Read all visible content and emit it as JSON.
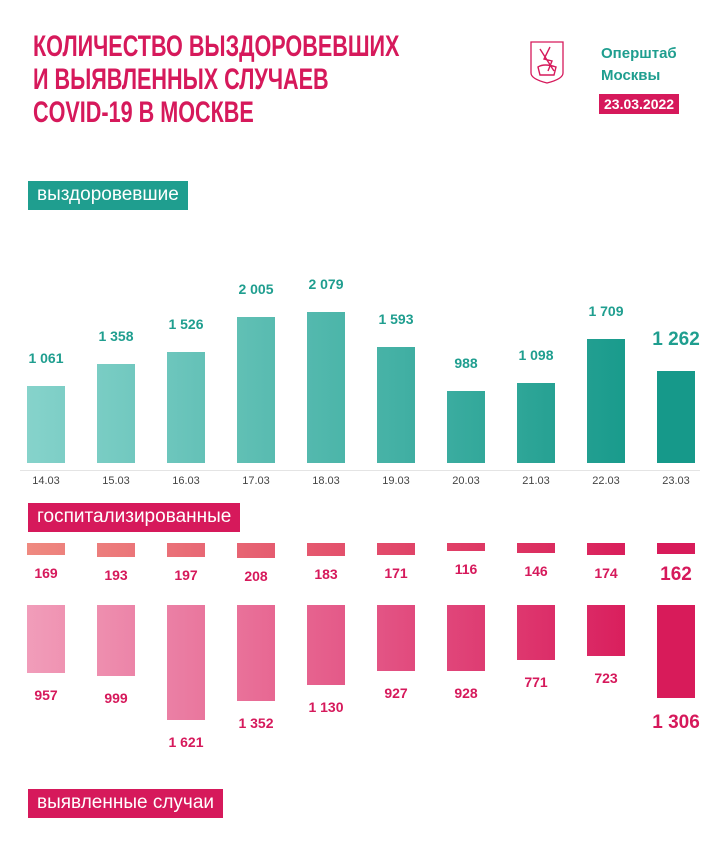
{
  "header": {
    "title_lines": [
      "КОЛИЧЕСТВО ВЫЗДОРОВЕВШИХ",
      "И ВЫЯВЛЕННЫХ СЛУЧАЕВ",
      "COVID-19 В МОСКВЕ"
    ],
    "org_lines": [
      "Оперштаб",
      "Москвы"
    ],
    "date": "23.03.2022",
    "logo": "moscow-coat-of-arms"
  },
  "colors": {
    "pink": "#d6195b",
    "teal": "#1f9e8f"
  },
  "sections": {
    "recovered": "выздоровевшие",
    "hospitalized": "госпитализированные",
    "cases": "выявленные случаи"
  },
  "chart_data": {
    "type": "bar",
    "categories": [
      "14.03",
      "15.03",
      "16.03",
      "17.03",
      "18.03",
      "19.03",
      "20.03",
      "21.03",
      "22.03",
      "23.03"
    ],
    "series": [
      {
        "name": "выздоровевшие",
        "values": [
          1061,
          1358,
          1526,
          2005,
          2079,
          1593,
          988,
          1098,
          1709,
          1262
        ],
        "labels": [
          "1 061",
          "1 358",
          "1 526",
          "2 005",
          "2 079",
          "1 593",
          "988",
          "1 098",
          "1 709",
          "1 262"
        ],
        "direction": "up",
        "color_start": "#86d3cb",
        "color_end": "#16998a"
      },
      {
        "name": "госпитализированные",
        "values": [
          169,
          193,
          197,
          208,
          183,
          171,
          116,
          146,
          174,
          162
        ],
        "labels": [
          "169",
          "193",
          "197",
          "208",
          "183",
          "171",
          "116",
          "146",
          "174",
          "162"
        ],
        "direction": "down",
        "color_start": "#ef8a80",
        "color_end": "#d81b5a"
      },
      {
        "name": "выявленные случаи",
        "values": [
          957,
          999,
          1621,
          1352,
          1130,
          927,
          928,
          771,
          723,
          1306
        ],
        "labels": [
          "957",
          "999",
          "1 621",
          "1 352",
          "1 130",
          "927",
          "928",
          "771",
          "723",
          "1 306"
        ],
        "direction": "down",
        "color_start": "#f19dba",
        "color_end": "#d81b5a"
      }
    ]
  }
}
